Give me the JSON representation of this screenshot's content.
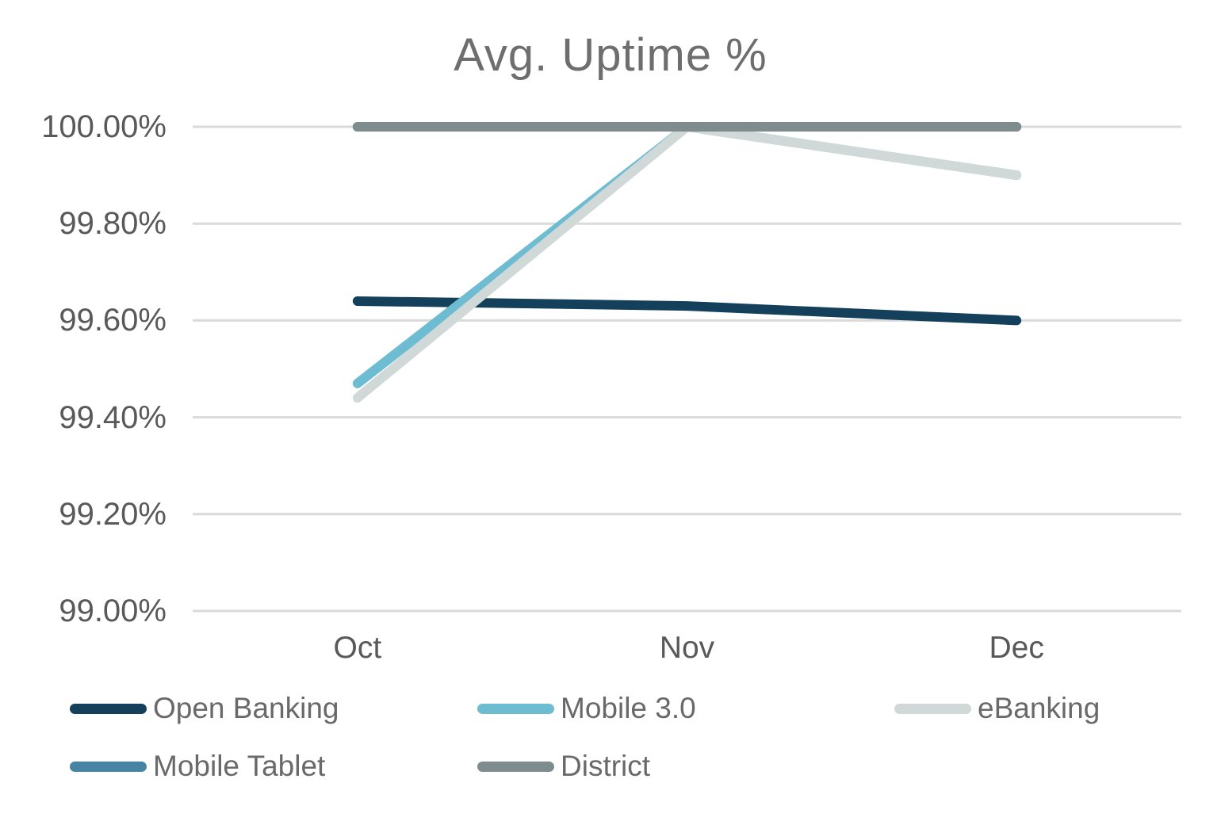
{
  "chart_data": {
    "type": "line",
    "title": "Avg. Uptime %",
    "categories": [
      "Oct",
      "Nov",
      "Dec"
    ],
    "series": [
      {
        "name": "Open Banking",
        "color": "#14405c",
        "values": [
          99.64,
          99.63,
          99.6
        ]
      },
      {
        "name": "Mobile 3.0",
        "color": "#6ebcd2",
        "values": [
          99.47,
          100.0,
          99.9
        ]
      },
      {
        "name": "eBanking",
        "color": "#d1d9d8",
        "values": [
          99.44,
          100.0,
          99.9
        ]
      },
      {
        "name": "Mobile Tablet",
        "color": "#4784a4",
        "values": [
          100.0,
          100.0,
          100.0
        ]
      },
      {
        "name": "District",
        "color": "#7e8c8e",
        "values": [
          100.0,
          100.0,
          100.0
        ]
      }
    ],
    "xlabel": "",
    "ylabel": "",
    "y_axis": {
      "min": 99.0,
      "max": 100.0,
      "tick_step": 0.2,
      "tick_labels": [
        "100.00%",
        "99.80%",
        "99.60%",
        "99.40%",
        "99.20%",
        "99.00%"
      ]
    },
    "grid": true,
    "gridline_color": "#dadada",
    "legend_position": "bottom",
    "text_colors": {
      "title": "#6e6e6e",
      "ticks": "#595959",
      "legend": "#696969"
    }
  }
}
